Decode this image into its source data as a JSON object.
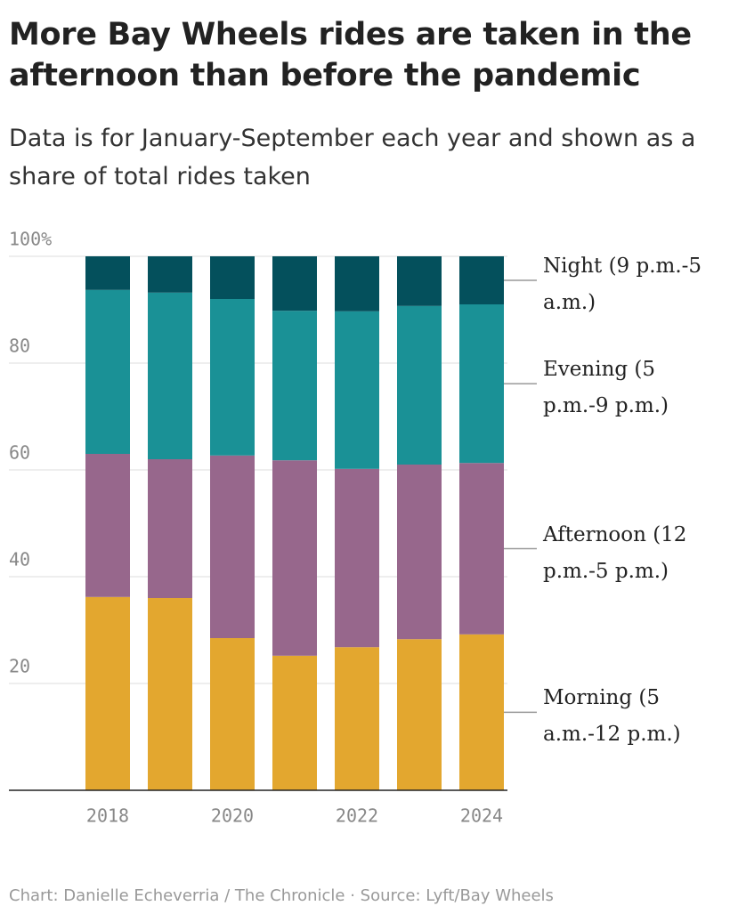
{
  "chart_data": {
    "type": "stacked-bar",
    "title": "More Bay Wheels rides are taken in the afternoon than before the pandemic",
    "subtitle": "Data is for January-September each year and shown as a share of total rides taken",
    "source": "Chart: Danielle Echeverria / The Chronicle · Source: Lyft/Bay Wheels",
    "categories": [
      "2018",
      null,
      "2020",
      null,
      "2022",
      null,
      "2024"
    ],
    "series": [
      {
        "name": "Morning (5 a.m.-12 p.m.)",
        "color": "#e3a72f",
        "values": [
          36.2,
          36.0,
          28.5,
          25.2,
          26.8,
          28.3,
          29.2
        ]
      },
      {
        "name": "Afternoon (12 p.m.-5 p.m.)",
        "color": "#97678c",
        "values": [
          26.8,
          26.0,
          34.2,
          36.6,
          33.4,
          32.7,
          32.1
        ]
      },
      {
        "name": "Evening (5 p.m.-9 p.m.)",
        "color": "#1a9196",
        "values": [
          30.7,
          31.2,
          29.3,
          28.0,
          29.5,
          29.7,
          29.7
        ]
      },
      {
        "name": "Night (9 p.m.-5 a.m.)",
        "color": "#04505c",
        "values": [
          6.3,
          6.8,
          8.0,
          10.2,
          10.3,
          9.3,
          9.0
        ]
      }
    ],
    "ylim": [
      0,
      100
    ],
    "yticks": [
      {
        "value": 100,
        "label": "100%"
      },
      80,
      60,
      40,
      20
    ],
    "grid": true,
    "legend": "right"
  }
}
